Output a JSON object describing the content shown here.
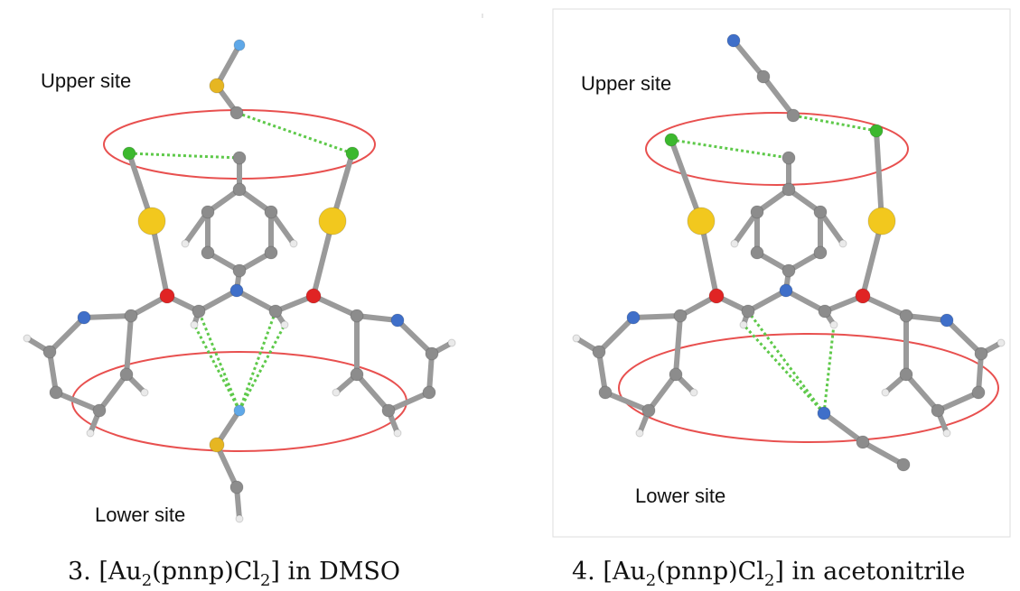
{
  "figures": [
    {
      "upper_label": "Upper site",
      "lower_label": "Lower site",
      "caption": [
        "3. [Au",
        "2",
        "(pnnp)Cl",
        "2",
        "] in DMSO"
      ]
    },
    {
      "upper_label": "Upper site",
      "lower_label": "Lower site",
      "caption": [
        "4. [Au",
        "2",
        "(pnnp)Cl",
        "2",
        "] in acetonitrile"
      ]
    }
  ]
}
